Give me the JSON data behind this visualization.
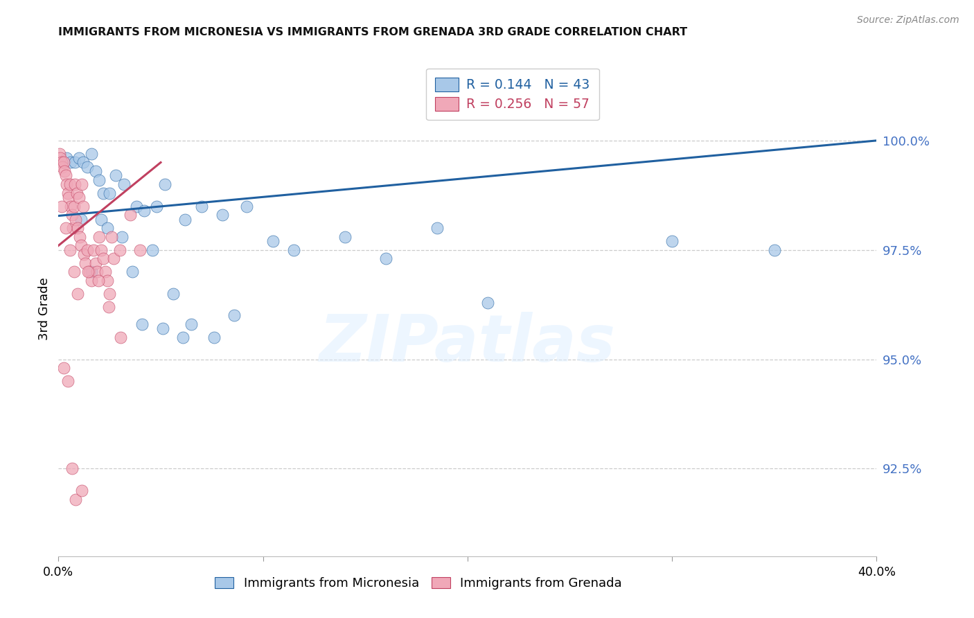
{
  "title": "IMMIGRANTS FROM MICRONESIA VS IMMIGRANTS FROM GRENADA 3RD GRADE CORRELATION CHART",
  "source": "Source: ZipAtlas.com",
  "ylabel": "3rd Grade",
  "yticks": [
    92.5,
    95.0,
    97.5,
    100.0
  ],
  "ytick_labels": [
    "92.5%",
    "95.0%",
    "97.5%",
    "100.0%"
  ],
  "xlim": [
    0.0,
    40.0
  ],
  "ylim": [
    90.5,
    101.8
  ],
  "watermark_text": "ZIPatlas",
  "color_blue_fill": "#a8c8e8",
  "color_blue_edge": "#2060a0",
  "color_pink_fill": "#f0a8b8",
  "color_pink_edge": "#c04060",
  "color_right_axis": "#4472c4",
  "color_title": "#111111",
  "blue_R": "0.144",
  "blue_N": "43",
  "pink_R": "0.256",
  "pink_N": "57",
  "blue_trendline_x": [
    0.0,
    40.0
  ],
  "blue_trendline_y": [
    98.28,
    100.0
  ],
  "pink_trendline_x": [
    0.0,
    5.0
  ],
  "pink_trendline_y": [
    97.6,
    99.5
  ],
  "scatter_blue_x": [
    0.4,
    0.6,
    0.8,
    1.0,
    1.2,
    1.4,
    1.6,
    1.8,
    2.0,
    2.2,
    2.5,
    2.8,
    3.2,
    3.8,
    4.2,
    4.8,
    5.2,
    6.2,
    7.0,
    8.0,
    9.2,
    10.5,
    11.5,
    14.0,
    16.0,
    18.5,
    21.0,
    30.0,
    35.0,
    1.1,
    1.6,
    2.1,
    3.1,
    4.1,
    5.1,
    6.5,
    7.6,
    8.6,
    2.4,
    3.6,
    4.6,
    5.6,
    6.1
  ],
  "scatter_blue_y": [
    99.6,
    99.5,
    99.5,
    99.6,
    99.5,
    99.4,
    99.7,
    99.3,
    99.1,
    98.8,
    98.8,
    99.2,
    99.0,
    98.5,
    98.4,
    98.5,
    99.0,
    98.2,
    98.5,
    98.3,
    98.5,
    97.7,
    97.5,
    97.8,
    97.3,
    98.0,
    96.3,
    97.7,
    97.5,
    98.2,
    97.0,
    98.2,
    97.8,
    95.8,
    95.7,
    95.8,
    95.5,
    96.0,
    98.0,
    97.0,
    97.5,
    96.5,
    95.5
  ],
  "scatter_pink_x": [
    0.05,
    0.1,
    0.15,
    0.2,
    0.25,
    0.3,
    0.35,
    0.4,
    0.45,
    0.5,
    0.55,
    0.6,
    0.65,
    0.7,
    0.75,
    0.8,
    0.85,
    0.9,
    0.95,
    1.0,
    1.05,
    1.1,
    1.15,
    1.2,
    1.25,
    1.3,
    1.4,
    1.5,
    1.6,
    1.7,
    1.8,
    1.9,
    2.0,
    2.1,
    2.2,
    2.3,
    2.4,
    2.5,
    2.6,
    2.7,
    3.0,
    3.5,
    4.0,
    0.15,
    0.35,
    0.55,
    0.75,
    0.95,
    1.45,
    1.95,
    2.45,
    3.05,
    0.25,
    0.45,
    0.65,
    0.85,
    1.15
  ],
  "scatter_pink_y": [
    99.7,
    99.6,
    99.5,
    99.4,
    99.5,
    99.3,
    99.2,
    99.0,
    98.8,
    98.7,
    99.0,
    98.5,
    98.3,
    98.0,
    98.5,
    99.0,
    98.2,
    98.8,
    98.0,
    98.7,
    97.8,
    97.6,
    99.0,
    98.5,
    97.4,
    97.2,
    97.5,
    97.0,
    96.8,
    97.5,
    97.2,
    97.0,
    97.8,
    97.5,
    97.3,
    97.0,
    96.8,
    96.5,
    97.8,
    97.3,
    97.5,
    98.3,
    97.5,
    98.5,
    98.0,
    97.5,
    97.0,
    96.5,
    97.0,
    96.8,
    96.2,
    95.5,
    94.8,
    94.5,
    92.5,
    91.8,
    92.0
  ]
}
